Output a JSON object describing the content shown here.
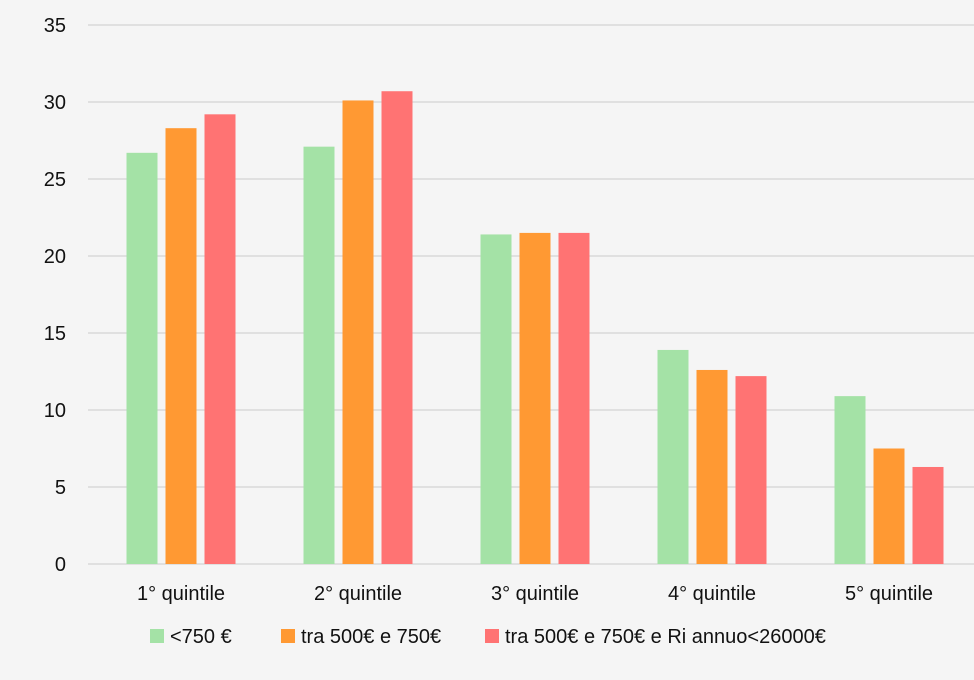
{
  "chart_data": {
    "type": "bar",
    "categories": [
      "1° quintile",
      "2° quintile",
      "3° quintile",
      "4° quintile",
      "5° quintile"
    ],
    "series": [
      {
        "name": "<750 €",
        "color": "#a4e2a6",
        "values": [
          26.7,
          27.1,
          21.4,
          13.9,
          10.9
        ]
      },
      {
        "name": "tra 500€ e 750€",
        "color": "#ff9933",
        "values": [
          28.3,
          30.1,
          21.5,
          12.6,
          7.5
        ]
      },
      {
        "name": "tra 500€ e 750€ e Ri annuo<26000€",
        "color": "#ff7373",
        "values": [
          29.2,
          30.7,
          21.5,
          12.2,
          6.3
        ]
      }
    ],
    "title": "",
    "xlabel": "",
    "ylabel": "",
    "ylim": [
      0,
      35
    ],
    "yticks": [
      0,
      5,
      10,
      15,
      20,
      25,
      30,
      35
    ],
    "grid": true,
    "legend_position": "bottom"
  }
}
